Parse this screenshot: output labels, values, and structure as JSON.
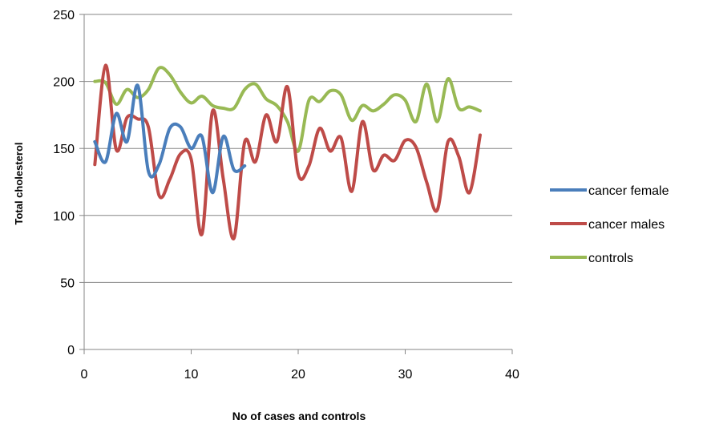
{
  "chart_data": {
    "type": "line",
    "xlabel": "No of cases and controls",
    "ylabel": "Total cholesterol",
    "xlim": [
      0,
      40
    ],
    "ylim": [
      0,
      250
    ],
    "xticks": [
      0,
      10,
      20,
      30,
      40
    ],
    "yticks": [
      0,
      50,
      100,
      150,
      200,
      250
    ],
    "grid": "horizontal",
    "legend_position": "right",
    "series": [
      {
        "name": "cancer female",
        "color": "#4a7ebb",
        "x": [
          1,
          2,
          3,
          4,
          5,
          6,
          7,
          8,
          9,
          10,
          11,
          12,
          13,
          14,
          15
        ],
        "y": [
          155,
          140,
          176,
          155,
          197,
          133,
          138,
          165,
          166,
          150,
          159,
          117,
          159,
          134,
          137
        ]
      },
      {
        "name": "cancer males",
        "color": "#be4b48",
        "x": [
          1,
          2,
          3,
          4,
          5,
          6,
          7,
          8,
          9,
          10,
          11,
          12,
          13,
          14,
          15,
          16,
          17,
          18,
          19,
          20,
          21,
          22,
          23,
          24,
          25,
          26,
          27,
          28,
          29,
          30,
          31,
          32,
          33,
          34,
          35,
          36,
          37
        ],
        "y": [
          138,
          212,
          149,
          173,
          172,
          166,
          115,
          127,
          146,
          142,
          86,
          178,
          127,
          83,
          155,
          140,
          175,
          155,
          196,
          131,
          137,
          165,
          148,
          158,
          118,
          170,
          134,
          145,
          141,
          156,
          151,
          125,
          104,
          155,
          144,
          117,
          160
        ]
      },
      {
        "name": "controls",
        "color": "#98b954",
        "x": [
          1,
          2,
          3,
          4,
          5,
          6,
          7,
          8,
          9,
          10,
          11,
          12,
          13,
          14,
          15,
          16,
          17,
          18,
          19,
          20,
          21,
          22,
          23,
          24,
          25,
          26,
          27,
          28,
          29,
          30,
          31,
          32,
          33,
          34,
          35,
          36,
          37
        ],
        "y": [
          200,
          199,
          183,
          194,
          188,
          194,
          210,
          205,
          192,
          184,
          189,
          182,
          180,
          180,
          194,
          198,
          187,
          182,
          170,
          148,
          186,
          185,
          193,
          190,
          171,
          182,
          178,
          183,
          190,
          186,
          170,
          198,
          170,
          202,
          180,
          181,
          178
        ]
      }
    ]
  }
}
